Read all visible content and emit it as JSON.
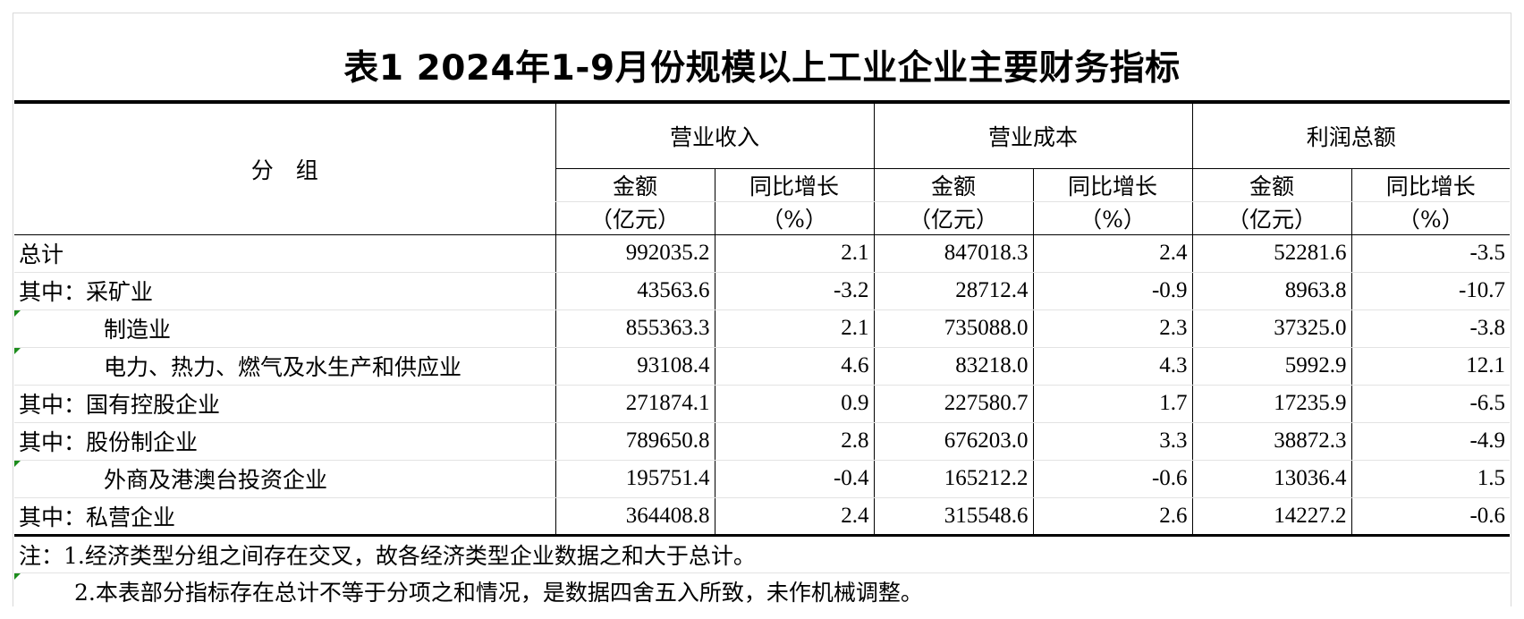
{
  "title": "表1 2024年1-9月份规模以上工业企业主要财务指标",
  "header": {
    "group_label": "分　组",
    "groups": [
      "营业收入",
      "营业成本",
      "利润总额"
    ],
    "sub_amount_line1": "金额",
    "sub_amount_line2": "（亿元）",
    "sub_growth_line1": "同比增长",
    "sub_growth_line2": "（%）"
  },
  "rows": [
    {
      "label": "总计",
      "values": [
        "992035.2",
        "2.1",
        "847018.3",
        "2.4",
        "52281.6",
        "-3.5"
      ]
    },
    {
      "label": "其中：采矿业",
      "values": [
        "43563.6",
        "-3.2",
        "28712.4",
        "-0.9",
        "8963.8",
        "-10.7"
      ]
    },
    {
      "label": "制造业",
      "values": [
        "855363.3",
        "2.1",
        "735088.0",
        "2.3",
        "37325.0",
        "-3.8"
      ]
    },
    {
      "label": "电力、热力、燃气及水生产和供应业",
      "values": [
        "93108.4",
        "4.6",
        "83218.0",
        "4.3",
        "5992.9",
        "12.1"
      ]
    },
    {
      "label": "其中：国有控股企业",
      "values": [
        "271874.1",
        "0.9",
        "227580.7",
        "1.7",
        "17235.9",
        "-6.5"
      ]
    },
    {
      "label": "其中：股份制企业",
      "values": [
        "789650.8",
        "2.8",
        "676203.0",
        "3.3",
        "38872.3",
        "-4.9"
      ]
    },
    {
      "label": "外商及港澳台投资企业",
      "values": [
        "195751.4",
        "-0.4",
        "165212.2",
        "-0.6",
        "13036.4",
        "1.5"
      ]
    },
    {
      "label": "其中：私营企业",
      "values": [
        "364408.8",
        "2.4",
        "315548.6",
        "2.6",
        "14227.2",
        "-0.6"
      ]
    }
  ],
  "notes": [
    "注：1.经济类型分组之间存在交叉，故各经济类型企业数据之和大于总计。",
    "2.本表部分指标存在总计不等于分项之和情况，是数据四舍五入所致，未作机械调整。"
  ],
  "colors": {
    "cell_marker": "#1c8c1c",
    "gridline": "#d9d9d9"
  }
}
